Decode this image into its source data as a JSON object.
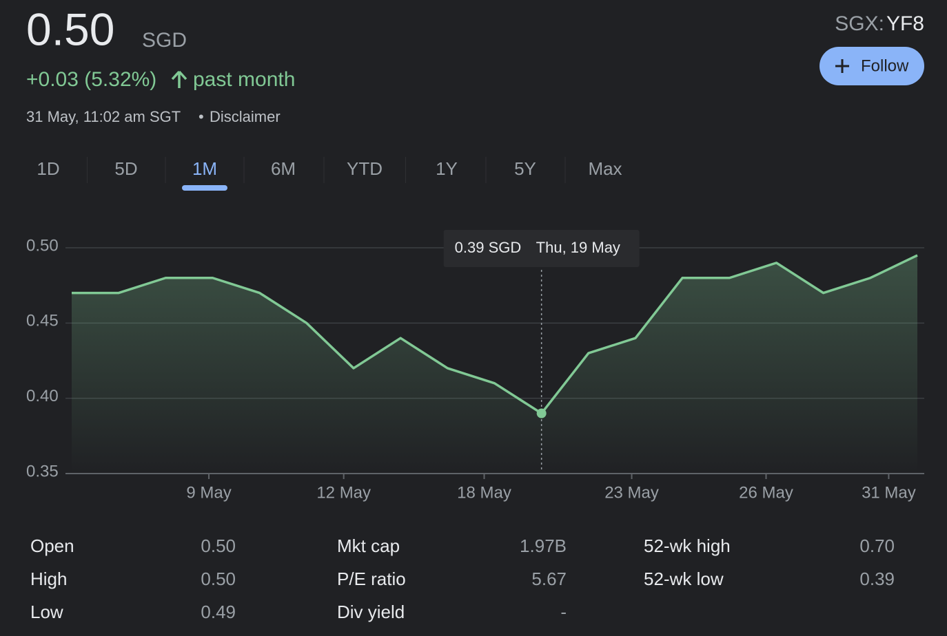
{
  "header": {
    "price": "0.50",
    "currency": "SGD",
    "change": "+0.03 (5.32%)",
    "period": "past month",
    "timestamp": "31 May, 11:02 am SGT",
    "disclaimer": "Disclaimer",
    "exchange": "SGX:",
    "symbol": "YF8",
    "follow": "Follow"
  },
  "ranges": {
    "tabs": [
      "1D",
      "5D",
      "1M",
      "6M",
      "YTD",
      "1Y",
      "5Y",
      "Max"
    ],
    "active": "1M"
  },
  "chart_data": {
    "type": "line",
    "categories": [
      null,
      null,
      null,
      null,
      null,
      null,
      null,
      null,
      null,
      null,
      null,
      null,
      null,
      null,
      null,
      null,
      null,
      null,
      null
    ],
    "values": [
      0.47,
      0.47,
      0.48,
      0.48,
      0.47,
      0.45,
      0.42,
      0.44,
      0.42,
      0.41,
      0.39,
      0.43,
      0.44,
      0.48,
      0.48,
      0.49,
      0.47,
      0.48,
      0.495
    ],
    "color": "#81c995",
    "xlim": [
      0,
      18
    ],
    "xticks": [
      {
        "value": 2.92,
        "label": "9 May"
      },
      {
        "value": 5.79,
        "label": "12 May"
      },
      {
        "value": 8.78,
        "label": "18 May"
      },
      {
        "value": 11.92,
        "label": "23 May"
      },
      {
        "value": 14.78,
        "label": "26 May"
      },
      {
        "value": 17.39,
        "label": "31 May"
      }
    ],
    "ylim": [
      0.35,
      0.5
    ],
    "yticks": [
      {
        "value": 0.35,
        "label": "0.35"
      },
      {
        "value": 0.4,
        "label": "0.40"
      },
      {
        "value": 0.45,
        "label": "0.45"
      },
      {
        "value": 0.5,
        "label": "0.50"
      }
    ],
    "grid": true,
    "highlight": 10,
    "tooltip": {
      "price": "0.39 SGD",
      "date": "Thu, 19 May"
    }
  },
  "stats": [
    [
      {
        "label": "Open",
        "value": "0.50"
      },
      {
        "label": "High",
        "value": "0.50"
      },
      {
        "label": "Low",
        "value": "0.49"
      }
    ],
    [
      {
        "label": "Mkt cap",
        "value": "1.97B"
      },
      {
        "label": "P/E ratio",
        "value": "5.67"
      },
      {
        "label": "Div yield",
        "value": "-"
      }
    ],
    [
      {
        "label": "52-wk high",
        "value": "0.70"
      },
      {
        "label": "52-wk low",
        "value": "0.39"
      }
    ]
  ]
}
